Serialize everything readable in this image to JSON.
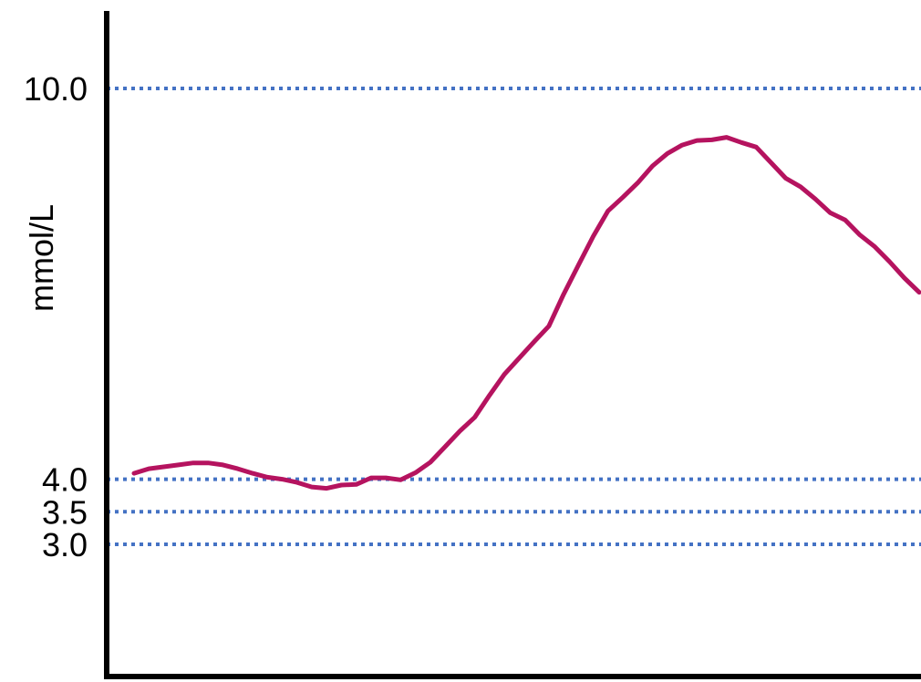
{
  "chart_data": {
    "type": "line",
    "ylabel": "mmol/L",
    "ylim": [
      2.0,
      10.4
    ],
    "y_ticks": [
      {
        "value": 10.0,
        "label": "10.0"
      },
      {
        "value": 4.0,
        "label": "4.0"
      },
      {
        "value": 3.5,
        "label": "3.5"
      },
      {
        "value": 3.0,
        "label": "3.0"
      }
    ],
    "reference_lines": [
      10.0,
      4.0,
      3.5,
      3.0
    ],
    "series": [
      {
        "values": [
          4.09,
          4.16,
          4.19,
          4.22,
          4.25,
          4.25,
          4.22,
          4.16,
          4.09,
          4.03,
          4.0,
          3.95,
          3.88,
          3.86,
          3.91,
          3.92,
          4.02,
          4.02,
          3.99,
          4.1,
          4.26,
          4.5,
          4.74,
          4.95,
          5.29,
          5.61,
          5.86,
          6.11,
          6.35,
          6.84,
          7.29,
          7.73,
          8.12,
          8.33,
          8.55,
          8.81,
          9.0,
          9.13,
          9.2,
          9.21,
          9.25,
          9.17,
          9.1,
          8.86,
          8.62,
          8.49,
          8.3,
          8.09,
          7.98,
          7.75,
          7.57,
          7.34,
          7.09,
          6.87
        ]
      }
    ],
    "colors": {
      "line": "#b5135f",
      "reference": "#4472c4",
      "axis": "#000000"
    },
    "grid": false,
    "legend": "none"
  }
}
